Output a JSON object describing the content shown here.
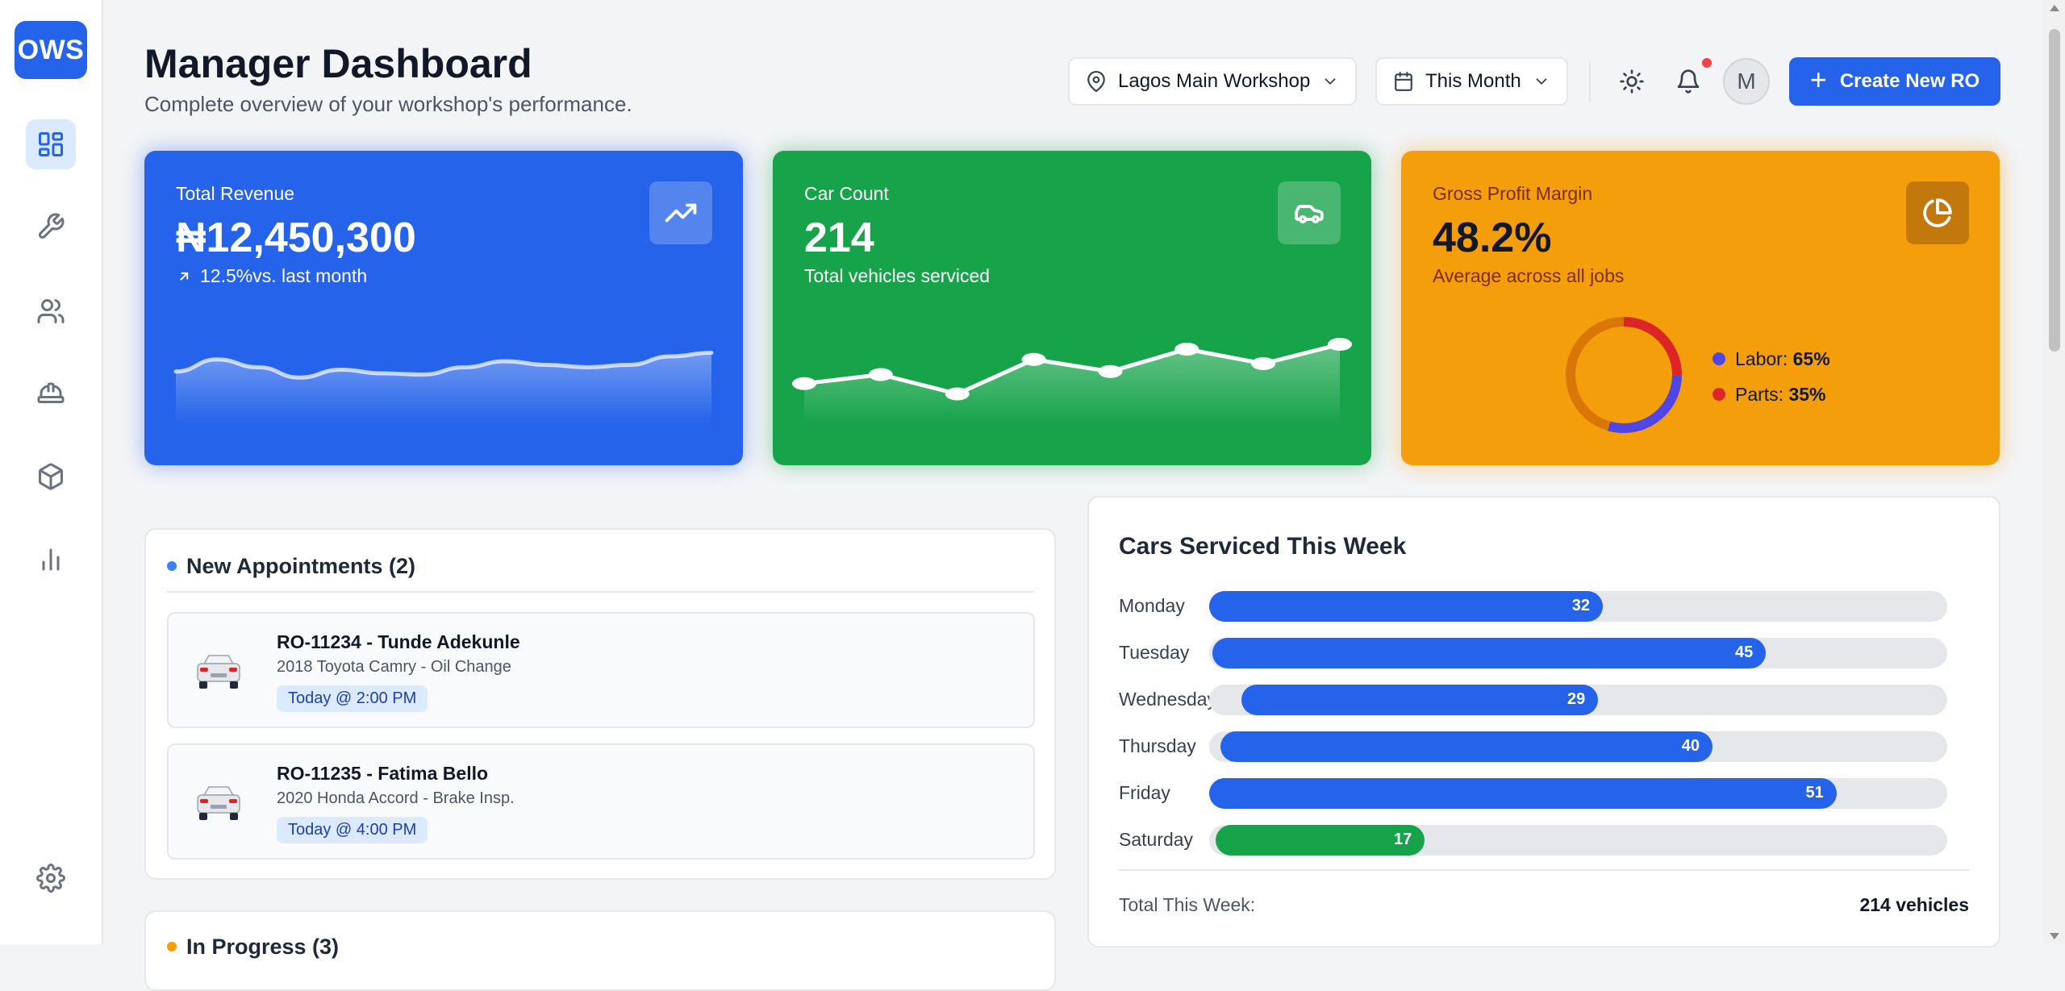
{
  "app": {
    "logo_text": "OWS"
  },
  "sidebar": {
    "items": [
      {
        "name": "dashboard",
        "icon": "dashboard-icon",
        "active": true
      },
      {
        "name": "repair-orders",
        "icon": "wrench-icon",
        "active": false
      },
      {
        "name": "customers",
        "icon": "users-icon",
        "active": false
      },
      {
        "name": "technicians",
        "icon": "hard-hat-icon",
        "active": false
      },
      {
        "name": "inventory",
        "icon": "box-icon",
        "active": false
      },
      {
        "name": "reports",
        "icon": "bar-chart-icon",
        "active": false
      }
    ],
    "settings_icon": "gear-icon"
  },
  "header": {
    "title": "Manager Dashboard",
    "subtitle": "Complete overview of your workshop's performance.",
    "location": "Lagos Main Workshop",
    "period": "This Month",
    "avatar_initial": "M",
    "create_label": "Create New RO"
  },
  "cards": {
    "revenue": {
      "label": "Total Revenue",
      "value": "₦12,450,300",
      "change": "12.5%",
      "change_suffix": "vs. last month",
      "accent": "#2563eb",
      "spark": [
        0.55,
        0.75,
        0.62,
        0.45,
        0.58,
        0.52,
        0.5,
        0.62,
        0.72,
        0.66,
        0.62,
        0.66,
        0.8,
        0.86
      ]
    },
    "cars": {
      "label": "Car Count",
      "value": "214",
      "sub": "Total vehicles serviced",
      "accent": "#16a34a",
      "spark": [
        0.35,
        0.5,
        0.18,
        0.75,
        0.55,
        0.92,
        0.68,
        1.0
      ]
    },
    "margin": {
      "label": "Gross Profit Margin",
      "value": "48.2%",
      "sub": "Average across all jobs",
      "accent": "#f59e0b",
      "labor_label": "Labor:",
      "labor_value": "65%",
      "parts_label": "Parts:",
      "parts_value": "35%",
      "labor_color": "#4f46e5",
      "parts_color": "#dc2626"
    }
  },
  "appointments": {
    "title": "New Appointments (2)",
    "items": [
      {
        "title": "RO-11234 - Tunde Adekunle",
        "desc": "2018 Toyota Camry - Oil Change",
        "time": "Today @ 2:00 PM"
      },
      {
        "title": "RO-11235 - Fatima Bello",
        "desc": "2020 Honda Accord - Brake Insp.",
        "time": "Today @ 4:00 PM"
      }
    ]
  },
  "in_progress": {
    "title": "In Progress (3)"
  },
  "cars_week": {
    "title": "Cars Serviced This Week",
    "total_label": "Total This Week:",
    "total_value": "214 vehicles"
  },
  "chart_data": {
    "type": "bar",
    "title": "Cars Serviced This Week",
    "categories": [
      "Monday",
      "Tuesday",
      "Wednesday",
      "Thursday",
      "Friday",
      "Saturday"
    ],
    "values": [
      32,
      45,
      29,
      40,
      51,
      17
    ],
    "colors": [
      "#2563eb",
      "#2563eb",
      "#2563eb",
      "#2563eb",
      "#2563eb",
      "#16a34a"
    ]
  }
}
